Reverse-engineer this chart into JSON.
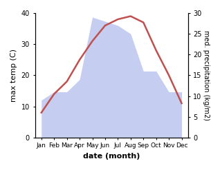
{
  "months": [
    "Jan",
    "Feb",
    "Mar",
    "Apr",
    "May",
    "Jun",
    "Jul",
    "Aug",
    "Sep",
    "Oct",
    "Nov",
    "Dec"
  ],
  "temperature": [
    8,
    14,
    18,
    25,
    31,
    36,
    38,
    39,
    37,
    28,
    20,
    11
  ],
  "precipitation": [
    9,
    11,
    11,
    14,
    29,
    28,
    27,
    25,
    16,
    16,
    11,
    11
  ],
  "temp_color": "#c0504d",
  "precip_fill_color": "#c5cef0",
  "temp_ylim": [
    0,
    40
  ],
  "precip_ylim": [
    0,
    30
  ],
  "temp_yticks": [
    0,
    10,
    20,
    30,
    40
  ],
  "precip_yticks": [
    0,
    5,
    10,
    15,
    20,
    25,
    30
  ],
  "xlabel": "date (month)",
  "ylabel_left": "max temp (C)",
  "ylabel_right": "med. precipitation (kg/m2)",
  "figsize": [
    3.18,
    2.47
  ],
  "dpi": 100
}
